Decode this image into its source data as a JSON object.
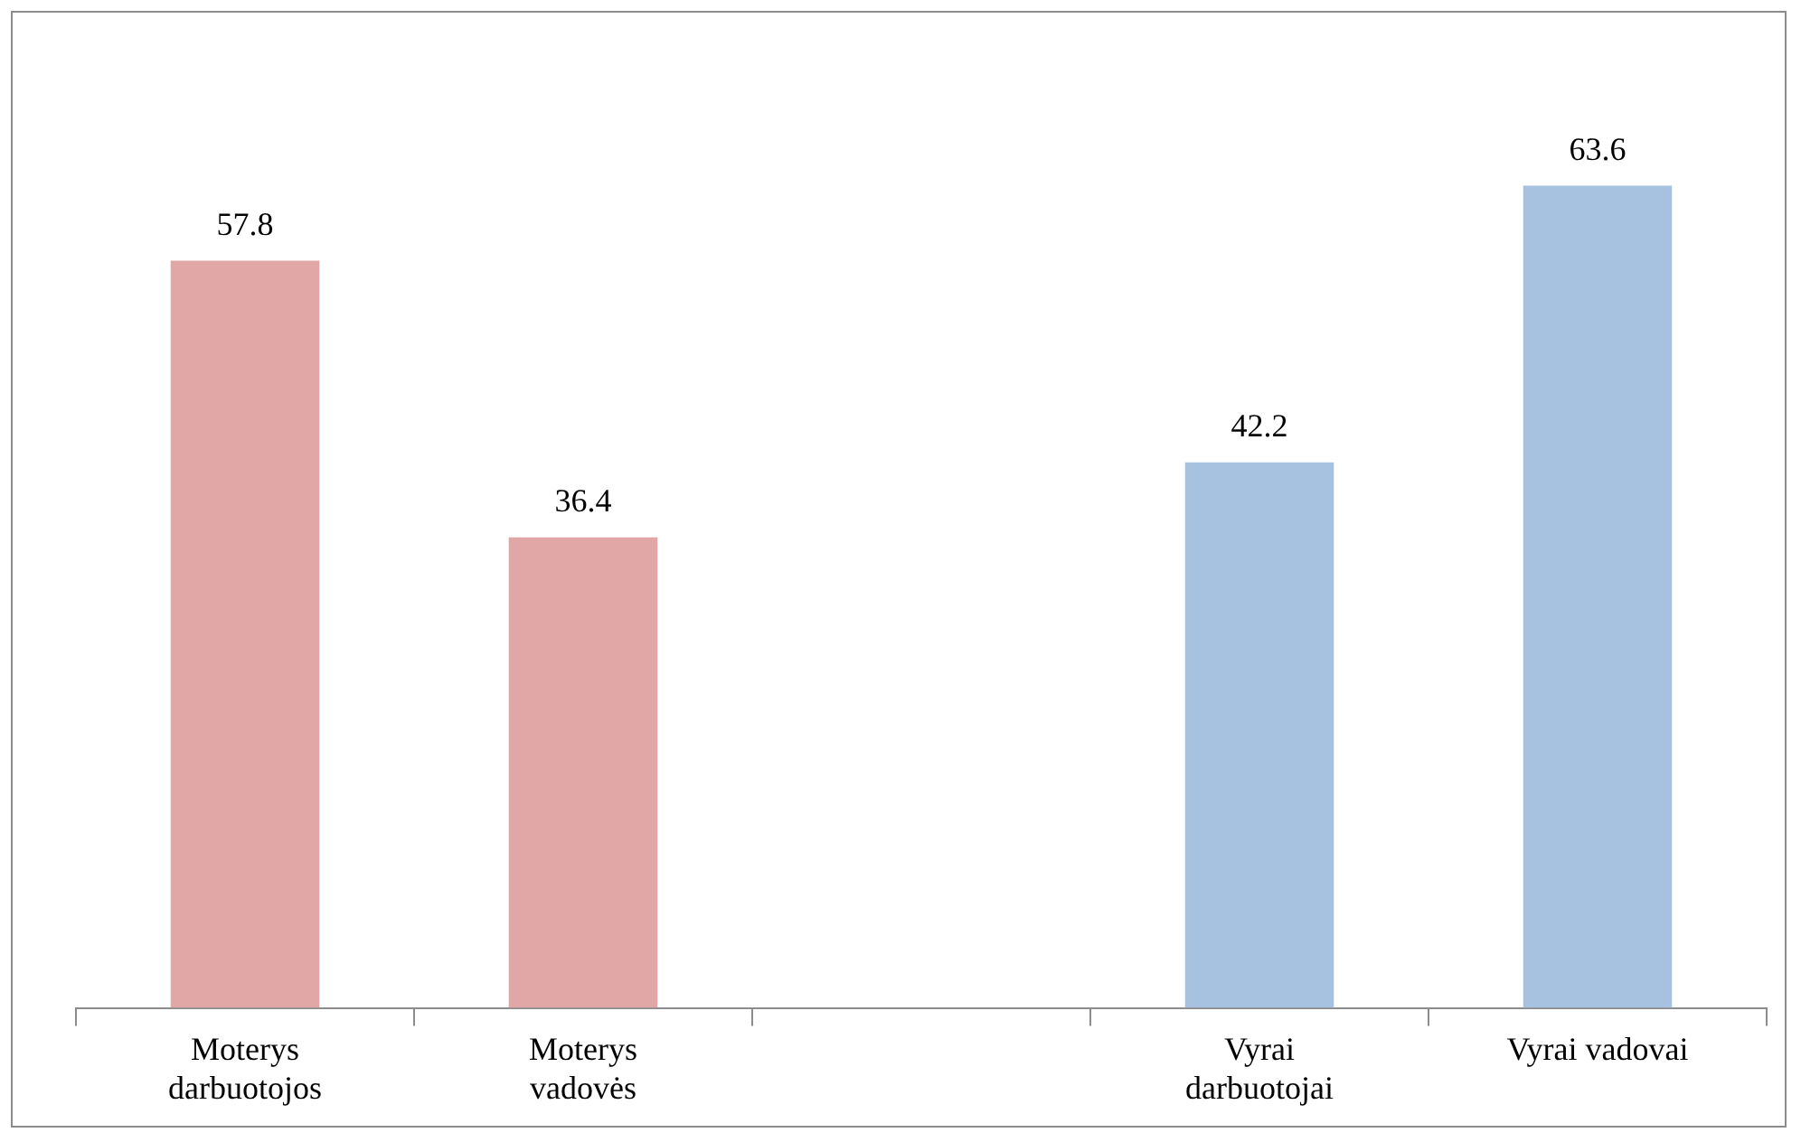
{
  "chart_data": {
    "type": "bar",
    "categories": [
      "Moterys darbuotojos",
      "Moterys vadovės",
      null,
      "Vyrai darbuotojai",
      "Vyrai vadovai"
    ],
    "values": [
      57.8,
      36.4,
      null,
      42.2,
      63.6
    ],
    "colors": [
      "#e0a7a6",
      "#e0a7a6",
      "#e0a7a6",
      "#a7c2e0",
      "#a7c2e0"
    ],
    "data_labels": true,
    "grid": false,
    "legend": false
  }
}
